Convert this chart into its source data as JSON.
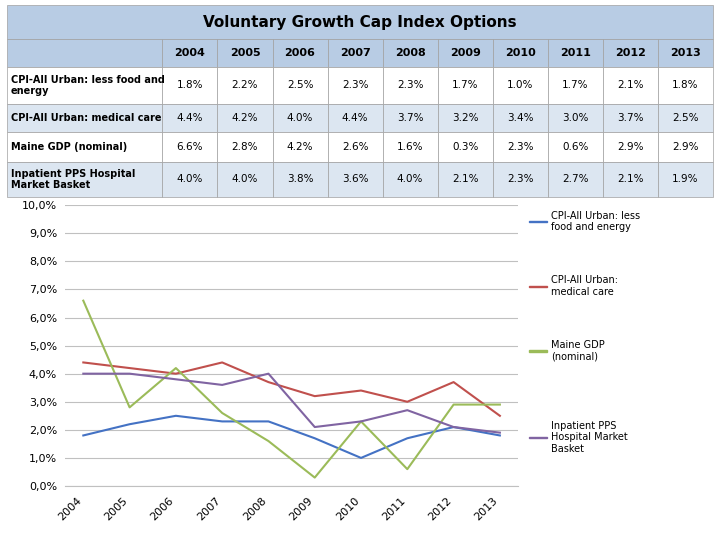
{
  "title": "Voluntary Growth Cap Index Options",
  "years": [
    2004,
    2005,
    2006,
    2007,
    2008,
    2009,
    2010,
    2011,
    2012,
    2013
  ],
  "series": [
    {
      "label": "CPI-All Urban: less food and\nenergy",
      "label_short": "CPI-All Urban: less\nfood and energy",
      "values": [
        1.8,
        2.2,
        2.5,
        2.3,
        2.3,
        1.7,
        1.0,
        1.7,
        2.1,
        1.8
      ],
      "color": "#4472C4"
    },
    {
      "label": "CPI-All Urban: medical care",
      "label_short": "CPI-All Urban:\nmedical care",
      "values": [
        4.4,
        4.2,
        4.0,
        4.4,
        3.7,
        3.2,
        3.4,
        3.0,
        3.7,
        2.5
      ],
      "color": "#C0504D"
    },
    {
      "label": "Maine GDP (nominal)",
      "label_short": "Maine GDP\n(nominal)",
      "values": [
        6.6,
        2.8,
        4.2,
        2.6,
        1.6,
        0.3,
        2.3,
        0.6,
        2.9,
        2.9
      ],
      "color": "#9BBB59"
    },
    {
      "label": "Inpatient PPS Hospital\nMarket Basket",
      "label_short": "Inpatient PPS\nHospital Market\nBasket",
      "values": [
        4.0,
        4.0,
        3.8,
        3.6,
        4.0,
        2.1,
        2.3,
        2.7,
        2.1,
        1.9
      ],
      "color": "#8064A2"
    }
  ],
  "table_header_bg": "#B8CCE4",
  "table_alt_bg": "#DCE6F1",
  "table_white_bg": "#FFFFFF",
  "chart_bg": "#FFFFFF",
  "yticks": [
    0.0,
    1.0,
    2.0,
    3.0,
    4.0,
    5.0,
    6.0,
    7.0,
    8.0,
    9.0,
    10.0
  ],
  "grid_color": "#C0C0C0",
  "legend_labels": [
    "CPI-All Urban: less\nfood and energy",
    "CPI-All Urban:\nmedical care",
    "Maine GDP\n(nominal)",
    "Inpatient PPS\nHospital Market\nBasket"
  ]
}
